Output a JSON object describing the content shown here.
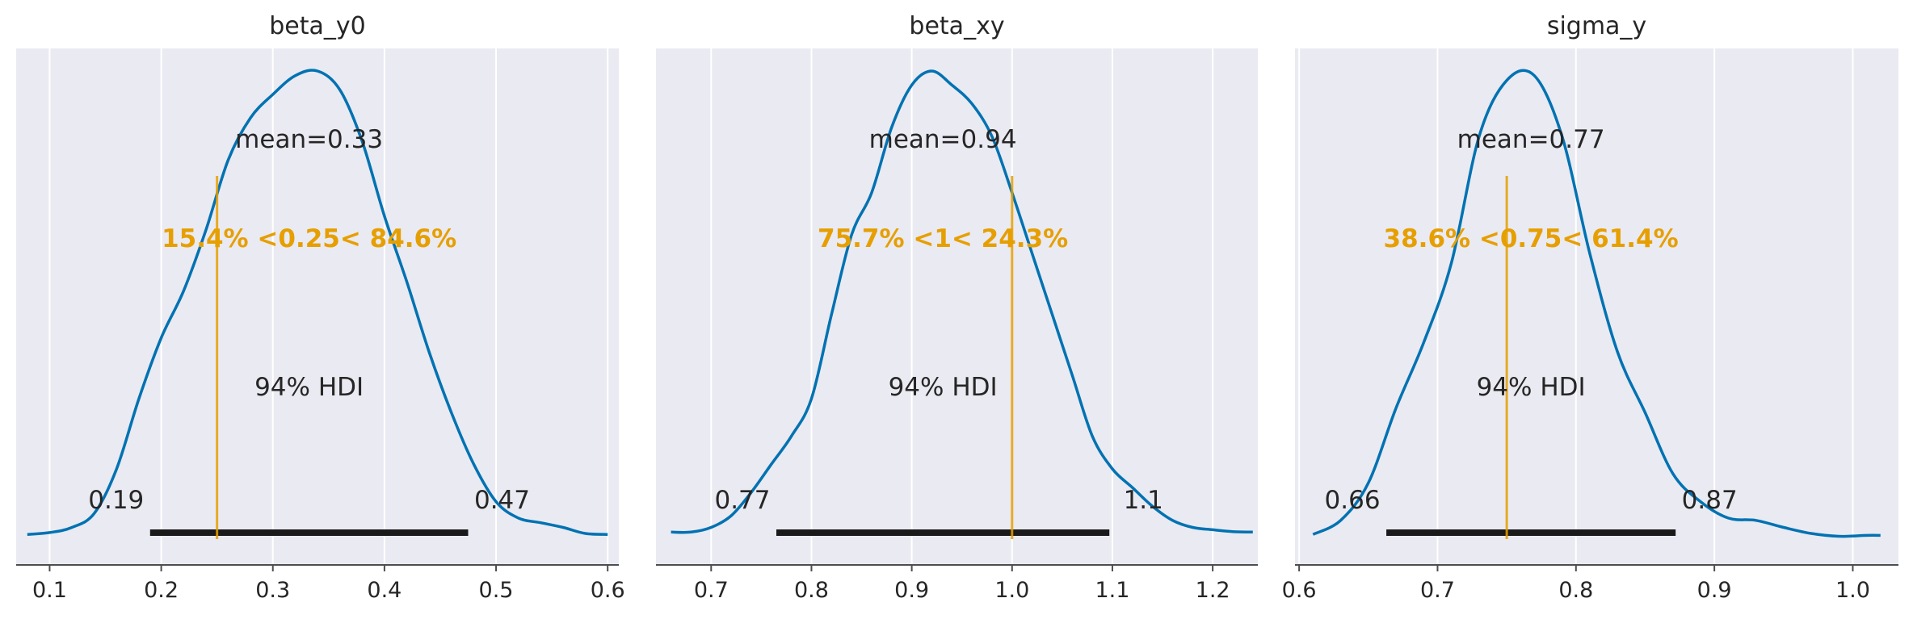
{
  "colors": {
    "panel_bg": "#eaeaf2",
    "grid": "#ffffff",
    "density": "#0072b2",
    "ref": "#e69f00",
    "hdi": "#1a1a1a",
    "axis": "#4d4d4d"
  },
  "chart_data": [
    {
      "type": "line",
      "title": "beta_y0",
      "xlim": [
        0.07,
        0.61
      ],
      "xticks": [
        0.1,
        0.2,
        0.3,
        0.4,
        0.5,
        0.6
      ],
      "xtick_labels": [
        "0.1",
        "0.2",
        "0.3",
        "0.4",
        "0.5",
        "0.6"
      ],
      "grid": true,
      "mean_label": "mean=0.33",
      "hdi_label": "94% HDI",
      "hdi": [
        0.19,
        0.475
      ],
      "hdi_low_label": "0.19",
      "hdi_high_label": "0.47",
      "ref_value": 0.25,
      "ref_label": "15.4% <0.25< 84.6%",
      "density": {
        "x": [
          0.08,
          0.1,
          0.12,
          0.14,
          0.16,
          0.18,
          0.2,
          0.22,
          0.24,
          0.26,
          0.28,
          0.3,
          0.32,
          0.34,
          0.36,
          0.38,
          0.4,
          0.42,
          0.44,
          0.46,
          0.48,
          0.5,
          0.52,
          0.54,
          0.56,
          0.58,
          0.6
        ],
        "y": [
          0.01,
          0.014,
          0.025,
          0.055,
          0.15,
          0.3,
          0.43,
          0.53,
          0.66,
          0.81,
          0.9,
          0.95,
          0.99,
          1.0,
          0.96,
          0.85,
          0.69,
          0.55,
          0.4,
          0.27,
          0.16,
          0.08,
          0.045,
          0.035,
          0.025,
          0.012,
          0.01
        ]
      }
    },
    {
      "type": "line",
      "title": "beta_xy",
      "xlim": [
        0.645,
        1.245
      ],
      "xticks": [
        0.7,
        0.8,
        0.9,
        1.0,
        1.1,
        1.2
      ],
      "xtick_labels": [
        "0.7",
        "0.8",
        "0.9",
        "1.0",
        "1.1",
        "1.2"
      ],
      "grid": true,
      "mean_label": "mean=0.94",
      "hdi_label": "94% HDI",
      "hdi": [
        0.765,
        1.097
      ],
      "hdi_low_label": "0.77",
      "hdi_high_label": "1.1",
      "ref_value": 1.0,
      "ref_label": "75.7% <1< 24.3%",
      "density": {
        "x": [
          0.66,
          0.68,
          0.7,
          0.72,
          0.74,
          0.76,
          0.78,
          0.8,
          0.82,
          0.84,
          0.86,
          0.88,
          0.9,
          0.92,
          0.94,
          0.96,
          0.98,
          1.0,
          1.02,
          1.04,
          1.06,
          1.08,
          1.1,
          1.12,
          1.14,
          1.16,
          1.18,
          1.2,
          1.22,
          1.24
        ],
        "y": [
          0.015,
          0.015,
          0.025,
          0.05,
          0.1,
          0.16,
          0.22,
          0.3,
          0.48,
          0.65,
          0.74,
          0.88,
          0.97,
          1.0,
          0.97,
          0.93,
          0.86,
          0.74,
          0.61,
          0.48,
          0.35,
          0.22,
          0.15,
          0.11,
          0.07,
          0.04,
          0.025,
          0.02,
          0.016,
          0.015
        ]
      }
    },
    {
      "type": "line",
      "title": "sigma_y",
      "xlim": [
        0.597,
        1.033
      ],
      "xticks": [
        0.6,
        0.7,
        0.8,
        0.9,
        1.0
      ],
      "xtick_labels": [
        "0.6",
        "0.7",
        "0.8",
        "0.9",
        "1.0"
      ],
      "grid": true,
      "mean_label": "mean=0.77",
      "hdi_label": "94% HDI",
      "hdi": [
        0.663,
        0.872
      ],
      "hdi_low_label": "0.66",
      "hdi_high_label": "0.87",
      "ref_value": 0.75,
      "ref_label": "38.6% <0.75< 61.4%",
      "density": {
        "x": [
          0.61,
          0.63,
          0.65,
          0.67,
          0.69,
          0.71,
          0.73,
          0.75,
          0.77,
          0.79,
          0.81,
          0.83,
          0.85,
          0.87,
          0.89,
          0.91,
          0.93,
          0.95,
          0.97,
          0.99,
          1.01,
          1.02
        ],
        "y": [
          0.01,
          0.04,
          0.12,
          0.28,
          0.42,
          0.59,
          0.86,
          0.98,
          0.99,
          0.86,
          0.61,
          0.4,
          0.27,
          0.14,
          0.08,
          0.045,
          0.04,
          0.025,
          0.012,
          0.006,
          0.008,
          0.008
        ]
      }
    }
  ]
}
